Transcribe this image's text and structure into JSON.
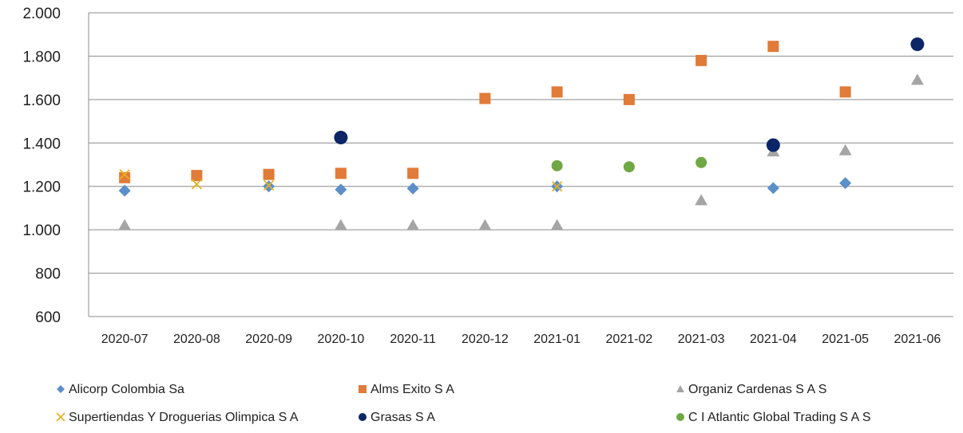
{
  "chart_data": {
    "type": "scatter",
    "title": "",
    "xlabel": "",
    "ylabel": "",
    "categories": [
      "2020-07",
      "2020-08",
      "2020-09",
      "2020-10",
      "2020-11",
      "2020-12",
      "2021-01",
      "2021-02",
      "2021-03",
      "2021-04",
      "2021-05",
      "2021-06"
    ],
    "ylim": [
      600,
      2000
    ],
    "yticks": [
      600,
      800,
      1000,
      1200,
      1400,
      1600,
      1800,
      2000
    ],
    "ytick_labels": [
      "600",
      "800",
      "1.000",
      "1.200",
      "1.400",
      "1.600",
      "1.800",
      "2.000"
    ],
    "grid": true,
    "legend_position": "bottom",
    "series": [
      {
        "name": "Alicorp Colombia Sa",
        "marker": "diamond",
        "color": "#5b8fc9",
        "values": [
          1180,
          null,
          1200,
          1185,
          1190,
          null,
          1200,
          null,
          null,
          1192,
          1215,
          null
        ]
      },
      {
        "name": "Alms Exito S A",
        "marker": "square",
        "color": "#e07b39",
        "values": [
          1240,
          1250,
          1255,
          1260,
          1260,
          1605,
          1635,
          1600,
          1780,
          1845,
          1635,
          null
        ]
      },
      {
        "name": "Organiz Cardenas S A S",
        "marker": "triangle",
        "color": "#a5a5a5",
        "values": [
          1020,
          null,
          null,
          1020,
          1020,
          1020,
          1020,
          null,
          1135,
          1360,
          1365,
          1690
        ]
      },
      {
        "name": "Supertiendas Y Droguerias Olimpica S A",
        "marker": "x",
        "color": "#e8b21b",
        "values": [
          1255,
          1210,
          1205,
          null,
          null,
          null,
          1200,
          null,
          null,
          null,
          null,
          null
        ]
      },
      {
        "name": "Grasas S A",
        "marker": "circle-large",
        "color": "#0b2567",
        "values": [
          null,
          null,
          null,
          1425,
          null,
          null,
          null,
          null,
          null,
          1390,
          null,
          1855
        ]
      },
      {
        "name": "C I Atlantic Global Trading S A S",
        "marker": "circle",
        "color": "#70a845",
        "values": [
          null,
          null,
          null,
          null,
          null,
          null,
          1295,
          1290,
          1310,
          null,
          null,
          null
        ]
      }
    ]
  }
}
